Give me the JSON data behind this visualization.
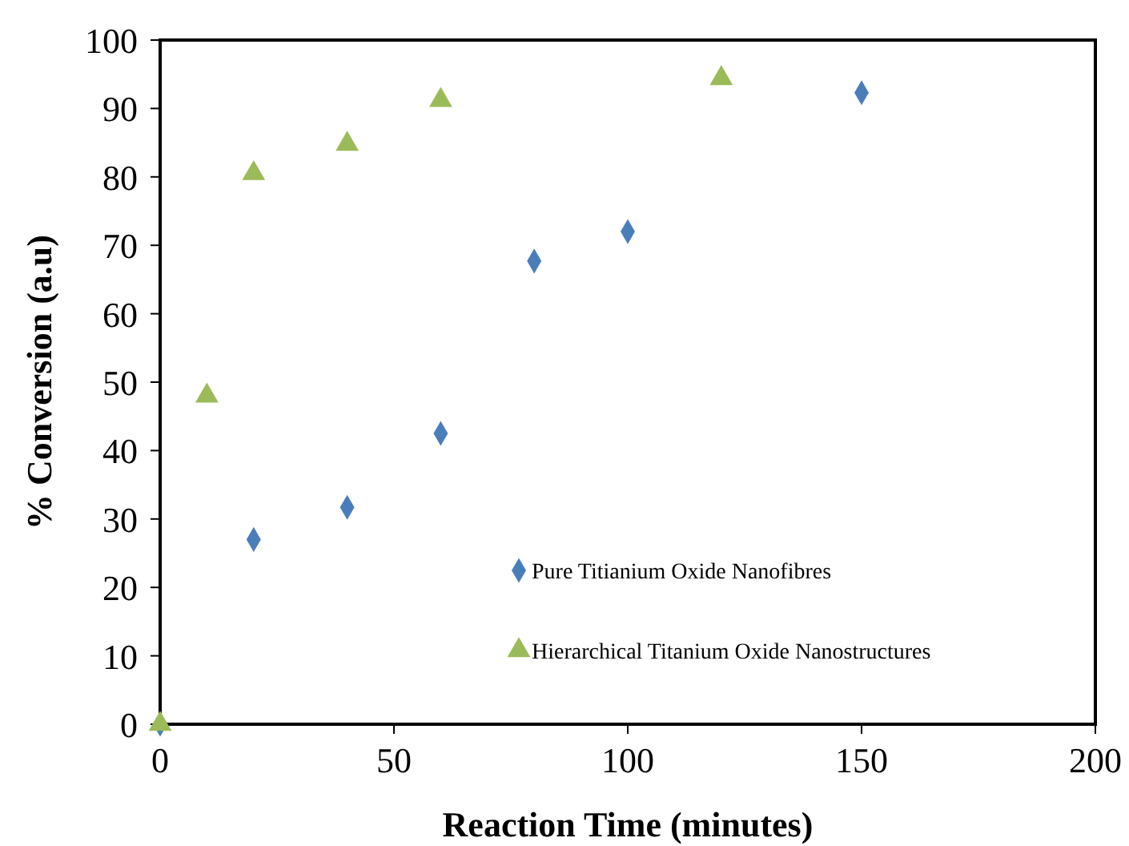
{
  "chart_data": {
    "type": "scatter",
    "xlabel": "Reaction Time (minutes)",
    "ylabel": "% Conversion  (a.u)",
    "xlim": [
      0,
      200
    ],
    "xticks": [
      0,
      50,
      100,
      150,
      200
    ],
    "ylim": [
      0,
      100
    ],
    "yticks": [
      0,
      10,
      20,
      30,
      40,
      50,
      60,
      70,
      80,
      90,
      100
    ],
    "grid": false,
    "legend": "bottom right",
    "series": [
      {
        "name": "Pure Titianium Oxide Nanofibres",
        "color": "#4a7ebb",
        "marker": "diamond",
        "x": [
          0,
          20,
          40,
          60,
          80,
          100,
          150
        ],
        "values": [
          0,
          27,
          31.7,
          42.5,
          67.7,
          72,
          92.3
        ]
      },
      {
        "name": "Hierarchical Titanium Oxide Nanostructures",
        "color": "#9bbb59",
        "marker": "triangle",
        "x": [
          0,
          10,
          20,
          40,
          60,
          120
        ],
        "values": [
          0,
          48,
          80.5,
          84.8,
          91.2,
          94.4
        ]
      }
    ]
  }
}
